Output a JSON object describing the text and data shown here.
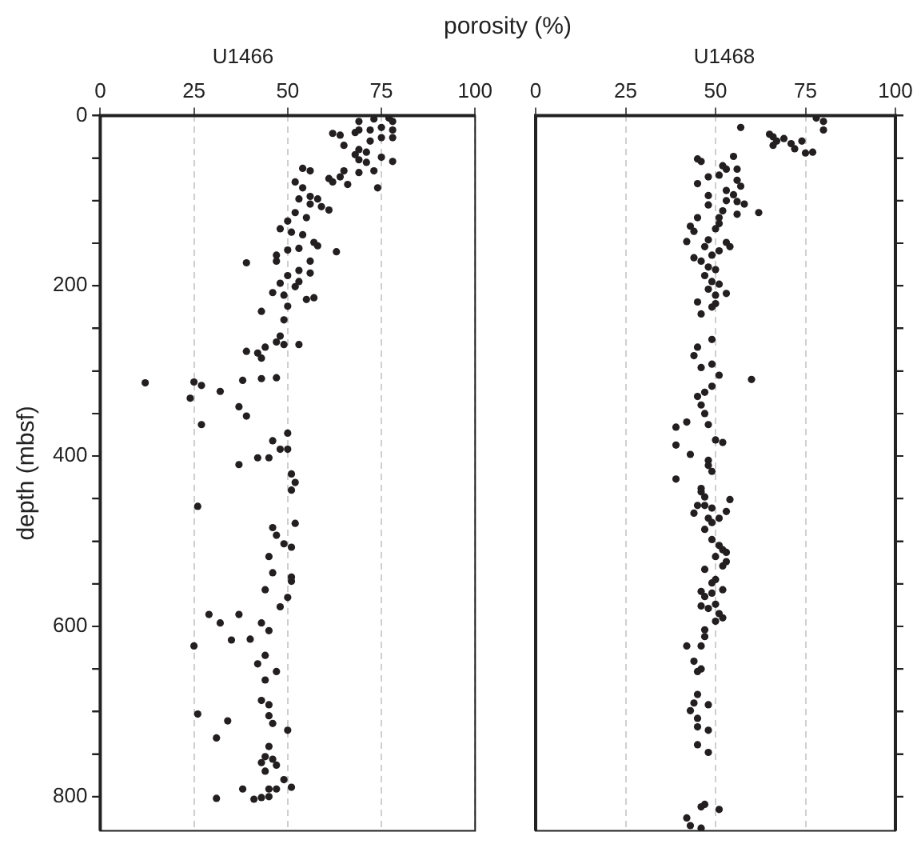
{
  "chart_data": [
    {
      "type": "scatter",
      "title": "U1466",
      "xlabel": "porosity (%)",
      "ylabel": "depth (mbsf)",
      "marker": "circle",
      "grid": "x",
      "line_style": "dashed",
      "xlim": [
        0,
        100
      ],
      "xticks": [
        0,
        25,
        50,
        75,
        100
      ],
      "ylim": [
        840,
        0
      ],
      "yticks": [
        0,
        {
          "value": 50,
          "label": null
        },
        {
          "value": 100,
          "label": null
        },
        {
          "value": 150,
          "label": null
        },
        200,
        {
          "value": 250,
          "label": null
        },
        {
          "value": 300,
          "label": null
        },
        {
          "value": 350,
          "label": null
        },
        400,
        {
          "value": 450,
          "label": null
        },
        {
          "value": 500,
          "label": null
        },
        {
          "value": 550,
          "label": null
        },
        600,
        {
          "value": 650,
          "label": null
        },
        {
          "value": 700,
          "label": null
        },
        {
          "value": 750,
          "label": null
        },
        800
      ],
      "series": [
        {
          "color": "#231f20",
          "x": [
            69,
            73,
            77,
            78,
            78,
            75,
            72,
            69,
            68,
            62,
            64,
            75,
            78,
            72,
            65,
            69,
            71,
            75,
            78,
            68,
            69,
            71,
            73,
            69,
            65,
            64,
            61,
            62,
            66,
            74,
            54,
            56,
            52,
            54,
            56,
            53,
            58,
            59,
            61,
            56,
            52,
            50,
            55,
            48,
            51,
            54,
            57,
            53,
            50,
            47,
            63,
            58,
            56,
            47,
            39,
            53,
            50,
            56,
            53,
            48,
            52,
            46,
            49,
            57,
            55,
            50,
            43,
            49,
            48,
            47,
            49,
            53,
            44,
            42,
            39,
            43,
            47,
            43,
            38,
            12,
            25,
            27,
            32,
            24,
            37,
            39,
            27,
            50,
            46,
            48,
            50,
            42,
            45,
            37,
            51,
            52,
            51,
            26,
            52,
            46,
            47,
            49,
            51,
            45,
            46,
            51,
            51,
            44,
            50,
            48,
            29,
            37,
            32,
            43,
            45,
            35,
            40,
            25,
            44,
            42,
            47,
            44,
            43,
            45,
            26,
            34,
            45,
            46,
            50,
            31,
            45,
            44,
            46,
            43,
            47,
            44,
            49,
            38,
            45,
            47,
            51,
            31,
            41,
            43,
            45
          ],
          "values": [
            7,
            4,
            3,
            7,
            17,
            14,
            17,
            17,
            20,
            21,
            23,
            26,
            26,
            30,
            35,
            40,
            43,
            49,
            54,
            46,
            52,
            55,
            65,
            67,
            65,
            72,
            74,
            78,
            81,
            85,
            62,
            65,
            78,
            85,
            95,
            98,
            98,
            107,
            111,
            104,
            114,
            124,
            120,
            133,
            137,
            140,
            149,
            156,
            158,
            164,
            160,
            153,
            171,
            171,
            173,
            182,
            188,
            185,
            195,
            197,
            201,
            208,
            211,
            214,
            216,
            224,
            230,
            240,
            259,
            266,
            269,
            269,
            272,
            279,
            277,
            285,
            308,
            309,
            311,
            314,
            313,
            317,
            324,
            332,
            342,
            353,
            363,
            373,
            382,
            392,
            392,
            402,
            402,
            410,
            421,
            431,
            440,
            459,
            479,
            484,
            493,
            503,
            507,
            518,
            537,
            542,
            547,
            557,
            566,
            577,
            586,
            586,
            596,
            596,
            605,
            616,
            615,
            623,
            634,
            644,
            653,
            663,
            687,
            692,
            703,
            711,
            705,
            714,
            722,
            731,
            741,
            753,
            756,
            760,
            763,
            770,
            780,
            791,
            791,
            791,
            789,
            802,
            803,
            801,
            800
          ]
        }
      ]
    },
    {
      "type": "scatter",
      "title": "U1468",
      "marker": "circle",
      "grid": "x",
      "line_style": "dashed",
      "tick_labels": "x",
      "xlim": [
        0,
        100
      ],
      "xticks": [
        0,
        25,
        50,
        75,
        100
      ],
      "ylim": [
        840,
        0
      ],
      "yticks": [
        {
          "value": 0,
          "label": null
        },
        {
          "value": 50,
          "label": null
        },
        {
          "value": 100,
          "label": null
        },
        {
          "value": 150,
          "label": null
        },
        {
          "value": 200,
          "label": null
        },
        {
          "value": 250,
          "label": null
        },
        {
          "value": 300,
          "label": null
        },
        {
          "value": 350,
          "label": null
        },
        {
          "value": 400,
          "label": null
        },
        {
          "value": 450,
          "label": null
        },
        {
          "value": 500,
          "label": null
        },
        {
          "value": 550,
          "label": null
        },
        {
          "value": 600,
          "label": null
        },
        {
          "value": 650,
          "label": null
        },
        {
          "value": 700,
          "label": null
        },
        {
          "value": 750,
          "label": null
        },
        {
          "value": 800,
          "label": null
        }
      ],
      "series": [
        {
          "color": "#231f20",
          "x": [
            78,
            80,
            80,
            57,
            65,
            66,
            69,
            67,
            66,
            74,
            71,
            72,
            75,
            77,
            45,
            46,
            55,
            52,
            53,
            56,
            48,
            45,
            51,
            56,
            57,
            53,
            48,
            55,
            53,
            56,
            58,
            62,
            56,
            48,
            52,
            51,
            45,
            51,
            43,
            50,
            44,
            42,
            48,
            53,
            54,
            47,
            51,
            49,
            44,
            46,
            48,
            50,
            47,
            49,
            48,
            51,
            53,
            50,
            45,
            50,
            49,
            46,
            49,
            45,
            44,
            46,
            49,
            51,
            49,
            60,
            47,
            45,
            46,
            47,
            42,
            39,
            48,
            50,
            52,
            39,
            43,
            48,
            48,
            49,
            39,
            46,
            46,
            47,
            54,
            45,
            47,
            49,
            44,
            53,
            48,
            51,
            49,
            47,
            49,
            51,
            52,
            53,
            50,
            53,
            52,
            47,
            50,
            49,
            52,
            46,
            49,
            47,
            50,
            46,
            48,
            51,
            52,
            50,
            47,
            47,
            42,
            46,
            44,
            46,
            45,
            45,
            44,
            48,
            43,
            45,
            45,
            48,
            45,
            48,
            47,
            46,
            51,
            42,
            43,
            46
          ],
          "values": [
            3,
            7,
            17,
            14,
            22,
            25,
            27,
            30,
            35,
            30,
            33,
            39,
            44,
            43,
            51,
            54,
            48,
            59,
            63,
            63,
            72,
            80,
            70,
            76,
            83,
            88,
            94,
            93,
            100,
            101,
            104,
            114,
            116,
            105,
            112,
            120,
            120,
            127,
            130,
            133,
            136,
            148,
            146,
            149,
            154,
            154,
            159,
            164,
            167,
            171,
            178,
            181,
            188,
            195,
            204,
            198,
            209,
            211,
            219,
            221,
            225,
            233,
            263,
            272,
            282,
            296,
            292,
            305,
            318,
            310,
            325,
            330,
            340,
            350,
            360,
            366,
            363,
            381,
            384,
            387,
            398,
            405,
            411,
            418,
            427,
            438,
            442,
            448,
            451,
            458,
            458,
            461,
            467,
            465,
            473,
            473,
            478,
            486,
            498,
            505,
            510,
            513,
            518,
            524,
            529,
            533,
            545,
            549,
            557,
            559,
            561,
            565,
            574,
            576,
            579,
            585,
            590,
            594,
            604,
            612,
            623,
            623,
            641,
            650,
            653,
            680,
            690,
            692,
            699,
            708,
            718,
            722,
            739,
            748,
            809,
            812,
            815,
            825,
            834,
            837
          ]
        }
      ]
    }
  ]
}
